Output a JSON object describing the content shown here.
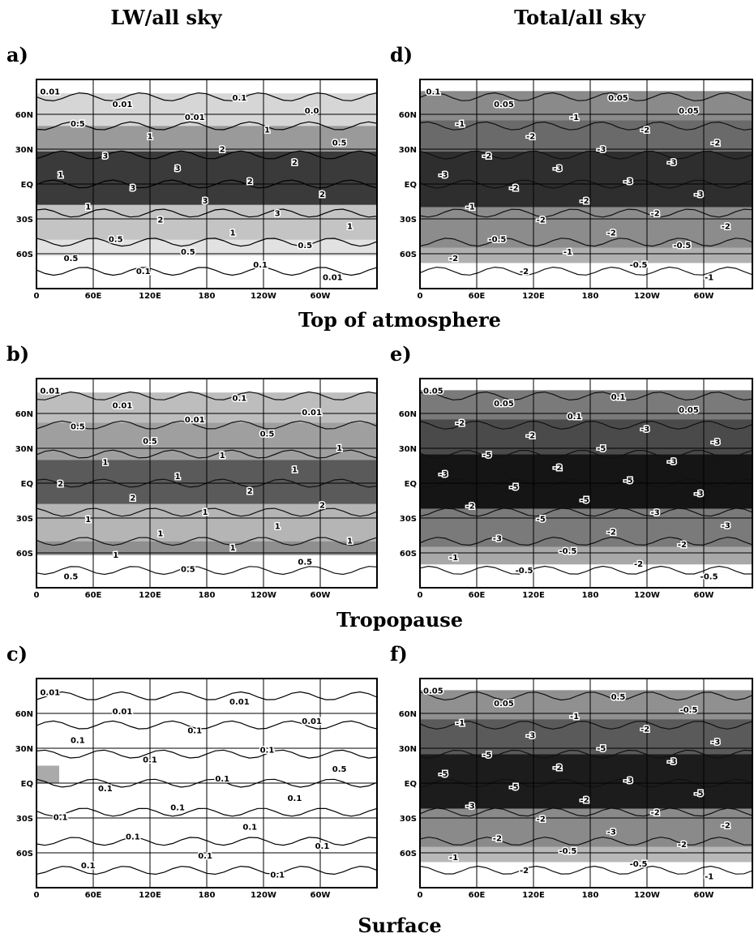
{
  "column_titles": [
    "LW/all sky",
    "Total/all sky"
  ],
  "row_titles": [
    "Top of atmosphere",
    "Tropopause",
    "Surface"
  ],
  "x_ticks": [
    "0",
    "60E",
    "120E",
    "180",
    "120W",
    "60W"
  ],
  "y_ticks": [
    "60N",
    "30N",
    "EQ",
    "30S",
    "60S"
  ],
  "panels": [
    {
      "label": "a)",
      "contour_labels": [
        "0.01",
        "0.1",
        "0.01",
        "0.0",
        "0.01",
        "0.5",
        "1",
        "1",
        "0.5",
        "2",
        "3",
        "2",
        "3",
        "1",
        "2",
        "3",
        "2",
        "3",
        "1",
        "3",
        "2",
        "1",
        "1",
        "0.5",
        "0.5",
        "0.5",
        "0.5",
        "0.1",
        "0.1",
        "0.01"
      ]
    },
    {
      "label": "b)",
      "contour_labels": [
        "0.01",
        "0.1",
        "0.01",
        "0.01",
        "0.01",
        "0.5",
        "0.5",
        "0.5",
        "1",
        "1",
        "1",
        "1",
        "1",
        "2",
        "2",
        "2",
        "2",
        "1",
        "1",
        "1",
        "1",
        "1",
        "1",
        "1",
        "0.5",
        "0.5",
        "0.5"
      ]
    },
    {
      "label": "c)",
      "contour_labels": [
        "0.01",
        "0.01",
        "0.01",
        "0.01",
        "0.1",
        "0.1",
        "0.1",
        "0.1",
        "0.5",
        "0.1",
        "0.1",
        "0.1",
        "0.1",
        "0.1",
        "0.1",
        "0.1",
        "0.1",
        "0.1",
        "0.1",
        "0.1"
      ]
    },
    {
      "label": "d)",
      "contour_labels": [
        "0.1",
        "0.05",
        "0.05",
        "0.05",
        "-1",
        "-1",
        "-2",
        "-2",
        "-2",
        "-3",
        "-2",
        "-3",
        "-3",
        "-3",
        "-3",
        "-2",
        "-3",
        "-2",
        "-1",
        "-2",
        "-2",
        "-2",
        "-2",
        "-0.5",
        "-0.5",
        "-1",
        "-2",
        "-0.5",
        "-2",
        "-1"
      ]
    },
    {
      "label": "e)",
      "contour_labels": [
        "0.05",
        "0.1",
        "0.05",
        "0.05",
        "0.1",
        "-2",
        "-3",
        "-2",
        "-3",
        "-5",
        "-5",
        "-3",
        "-2",
        "-3",
        "-5",
        "-5",
        "-3",
        "-5",
        "-2",
        "-3",
        "-5",
        "-3",
        "-2",
        "-3",
        "-2",
        "-0.5",
        "-1",
        "-2",
        "-0.5",
        "-0.5"
      ]
    },
    {
      "label": "f)",
      "contour_labels": [
        "0.05",
        "0.5",
        "0.05",
        "-0.5",
        "-1",
        "-1",
        "-2",
        "-3",
        "-3",
        "-5",
        "-5",
        "-3",
        "-2",
        "-5",
        "-3",
        "-5",
        "-5",
        "-2",
        "-3",
        "-2",
        "-2",
        "-2",
        "-3",
        "-2",
        "-2",
        "-0.5",
        "-1",
        "-0.5",
        "-2",
        "-1"
      ]
    }
  ]
}
